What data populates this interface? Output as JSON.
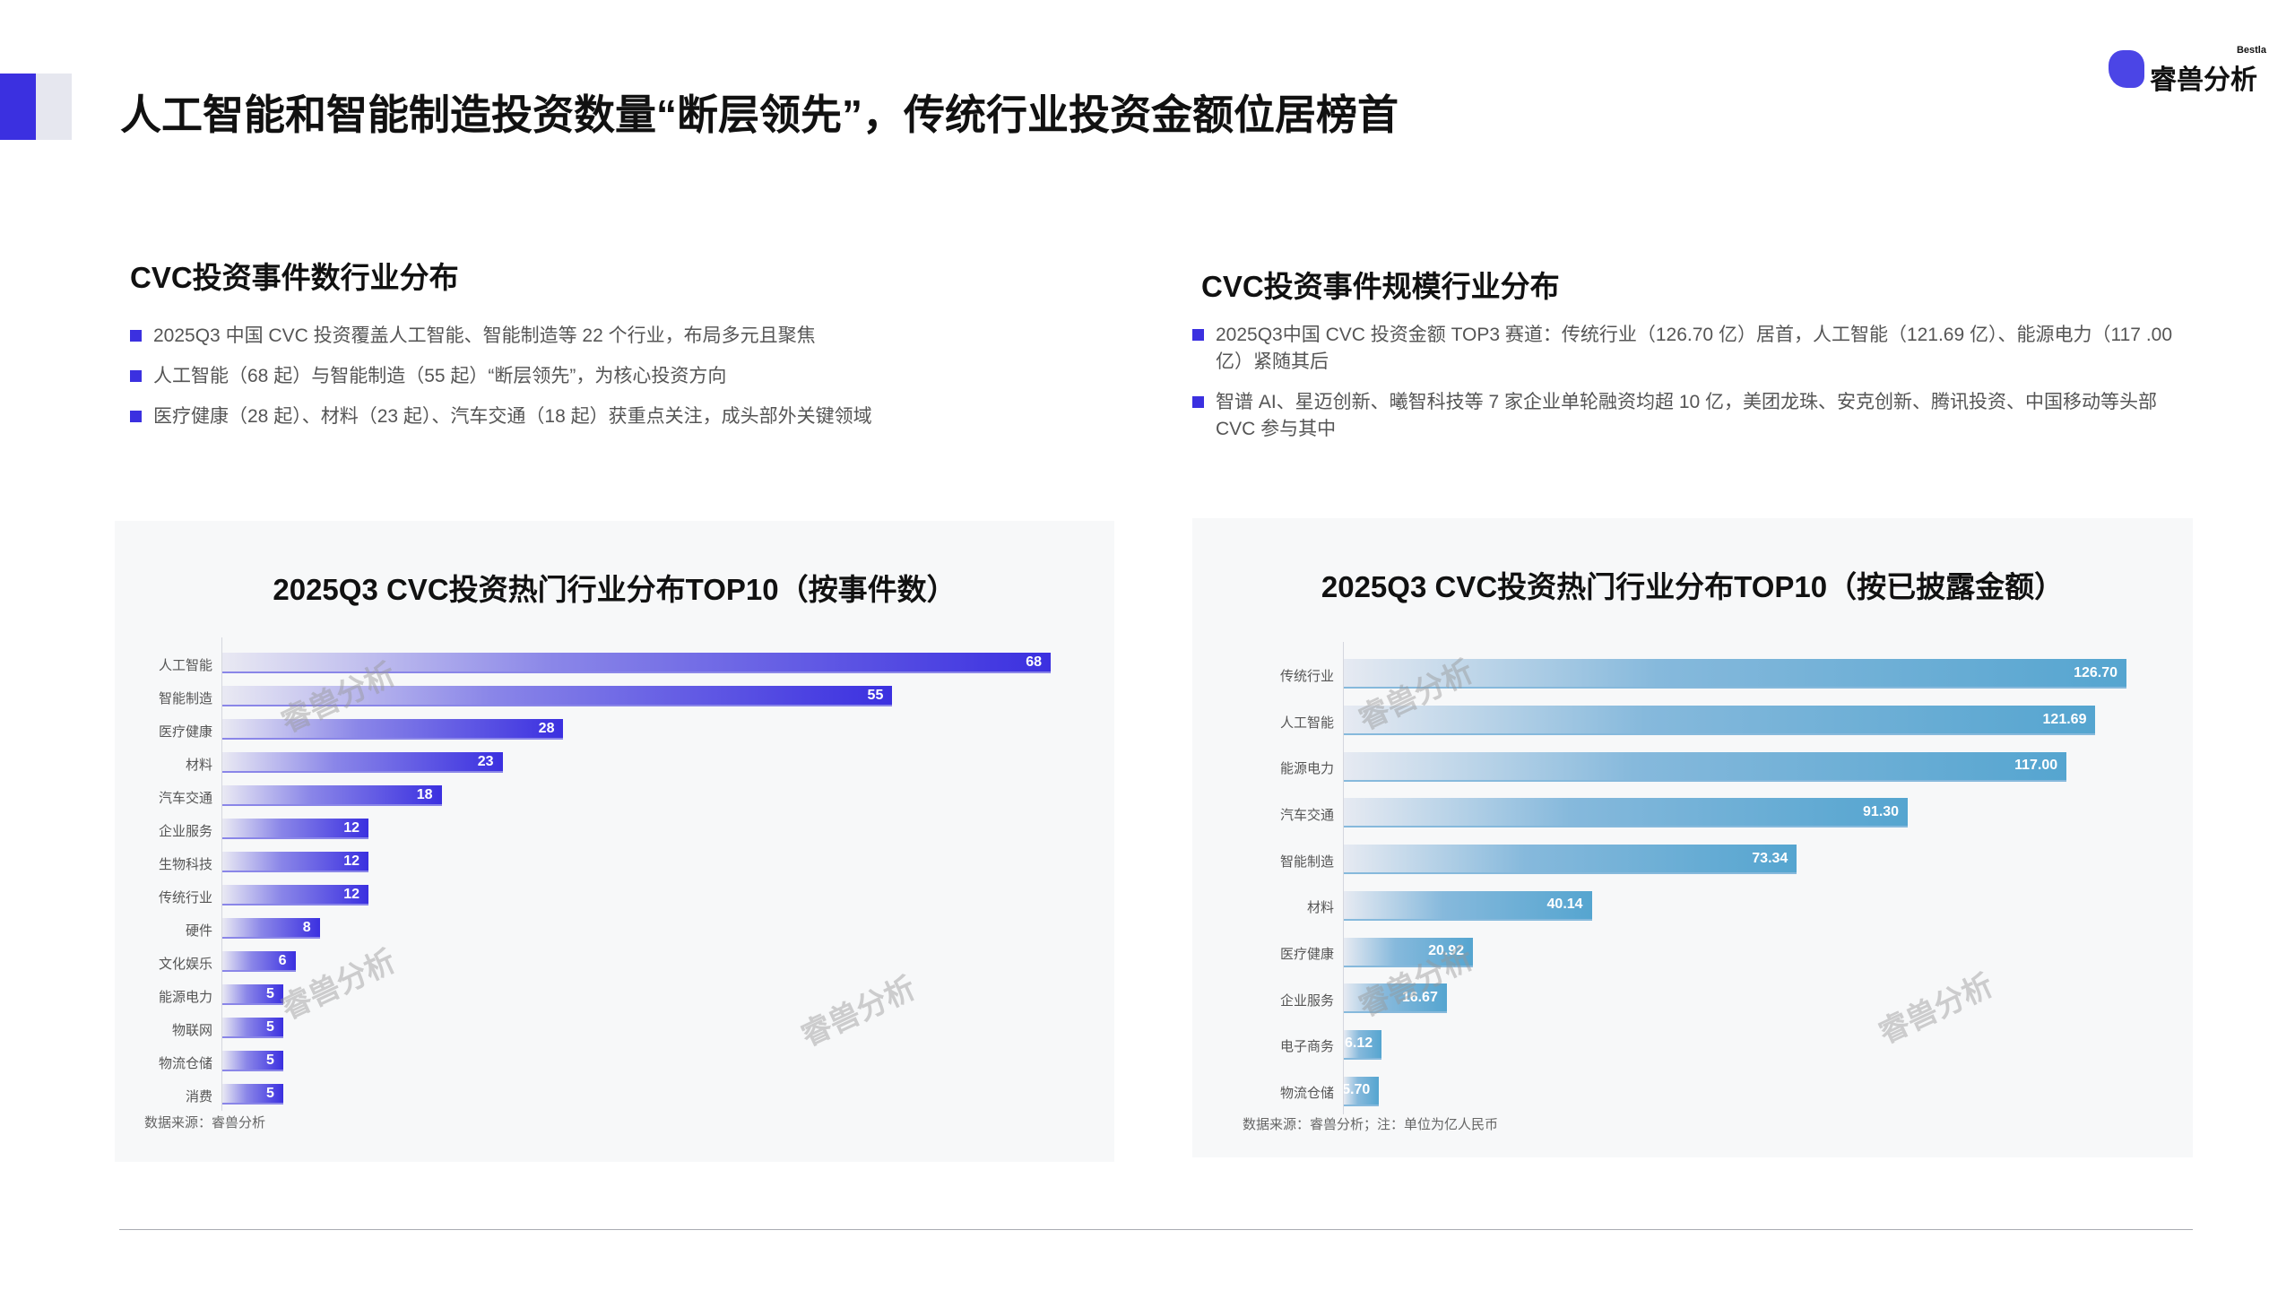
{
  "header": {
    "title": "人工智能和智能制造投资数量“断层领先”，传统行业投资金额位居榜首",
    "logo_name": "睿兽分析",
    "logo_en": "Bestla"
  },
  "left": {
    "heading": "CVC投资事件数行业分布",
    "bullets": [
      "2025Q3 中国 CVC 投资覆盖人工智能、智能制造等 22 个行业，布局多元且聚焦",
      "人工智能（68 起）与智能制造（55 起）“断层领先”，为核心投资方向",
      "医疗健康（28 起）、材料（23 起）、汽车交通（18 起）获重点关注，成头部外关键领域"
    ]
  },
  "right": {
    "heading": "CVC投资事件规模行业分布",
    "bullets": [
      "2025Q3中国 CVC 投资金额 TOP3 赛道：传统行业（126.70 亿）居首，人工智能（121.69 亿）、能源电力（117 .00亿）紧随其后",
      "智谱 AI、星迈创新、曦智科技等 7 家企业单轮融资均超 10 亿，美团龙珠、安克创新、腾讯投资、中国移动等头部 CVC 参与其中"
    ]
  },
  "watermark": "睿兽分析",
  "colors": {
    "accent": "#3b30e0",
    "left_bar_end": "#3b30e0",
    "right_bar_end": "#55a5d0"
  },
  "chart_data": [
    {
      "type": "bar",
      "orientation": "horizontal",
      "title": "2025Q3 CVC投资热门行业分布TOP10（按事件数）",
      "categories": [
        "人工智能",
        "智能制造",
        "医疗健康",
        "材料",
        "汽车交通",
        "企业服务",
        "生物科技",
        "传统行业",
        "硬件",
        "文化娱乐",
        "能源电力",
        "物联网",
        "物流仓储",
        "消费"
      ],
      "values": [
        68,
        55,
        28,
        23,
        18,
        12,
        12,
        12,
        8,
        6,
        5,
        5,
        5,
        5
      ],
      "value_labels": [
        "68",
        "55",
        "28",
        "23",
        "18",
        "12",
        "12",
        "12",
        "8",
        "6",
        "5",
        "5",
        "5",
        "5"
      ],
      "note": "数据来源：睿兽分析"
    },
    {
      "type": "bar",
      "orientation": "horizontal",
      "title": "2025Q3 CVC投资热门行业分布TOP10（按已披露金额）",
      "categories": [
        "传统行业",
        "人工智能",
        "能源电力",
        "汽车交通",
        "智能制造",
        "材料",
        "医疗健康",
        "企业服务",
        "电子商务",
        "物流仓储"
      ],
      "values": [
        126.7,
        121.69,
        117.0,
        91.3,
        73.34,
        40.14,
        20.92,
        16.67,
        6.12,
        5.7
      ],
      "value_labels": [
        "126.70",
        "121.69",
        "117.00",
        "91.30",
        "73.34",
        "40.14",
        "20.92",
        "16.67",
        "6.12",
        "5.70"
      ],
      "unit": "亿人民币",
      "note": "数据来源：睿兽分析；注：单位为亿人民币"
    }
  ]
}
